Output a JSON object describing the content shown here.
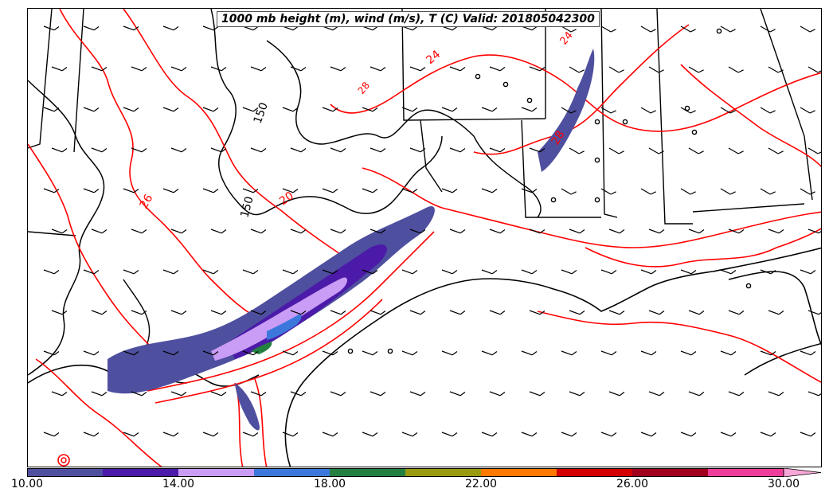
{
  "title": "1000 mb height (m), wind (m/s), T (C) Valid: 201805042300",
  "colors": {
    "temperature_contour": "#ff0000",
    "height_contour": "#000000",
    "boundaries": "#000000",
    "wind_barb": "#000000"
  },
  "contour_labels": {
    "temperature": [
      "26",
      "24",
      "28",
      "20",
      "24",
      "28"
    ],
    "height": [
      "150",
      "150"
    ]
  },
  "colorbar": {
    "min": 10,
    "max": 30,
    "extend": "max",
    "ticks": [
      "10.00",
      "14.00",
      "18.00",
      "22.00",
      "26.00",
      "30.00"
    ],
    "bins": [
      {
        "from": 10,
        "to": 12,
        "color": "#4f4f9f"
      },
      {
        "from": 12,
        "to": 14,
        "color": "#4b1aa8"
      },
      {
        "from": 14,
        "to": 16,
        "color": "#c99cf5"
      },
      {
        "from": 16,
        "to": 18,
        "color": "#3c78dc"
      },
      {
        "from": 18,
        "to": 20,
        "color": "#238040"
      },
      {
        "from": 20,
        "to": 22,
        "color": "#9a9a10"
      },
      {
        "from": 22,
        "to": 24,
        "color": "#ff7800"
      },
      {
        "from": 24,
        "to": 26,
        "color": "#d20000"
      },
      {
        "from": 26,
        "to": 28,
        "color": "#a0001e"
      },
      {
        "from": 28,
        "to": 30,
        "color": "#ee3c9a"
      }
    ],
    "extend_color": "#f7a8d8"
  }
}
